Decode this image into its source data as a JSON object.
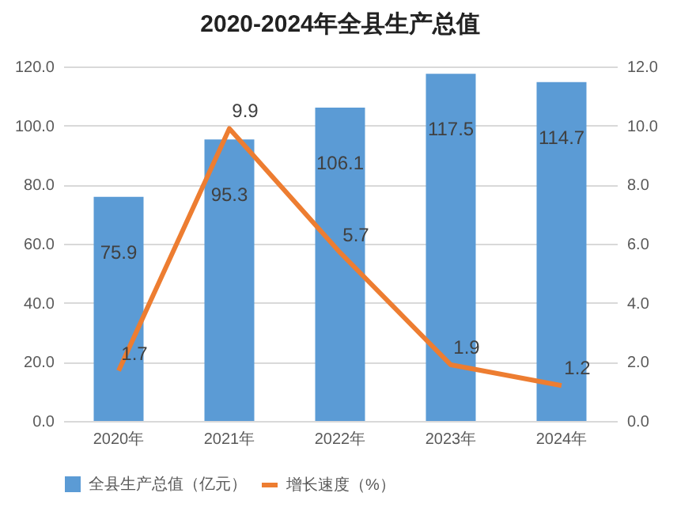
{
  "chart_data": {
    "type": "bar",
    "title": "2020-2024年全县生产总值",
    "categories": [
      "2020年",
      "2021年",
      "2022年",
      "2023年",
      "2024年"
    ],
    "series": [
      {
        "name": "全县生产总值（亿元）",
        "color": "#5b9bd5",
        "values": [
          75.9,
          95.3,
          106.1,
          117.5,
          114.7
        ]
      },
      {
        "name": "增长速度（%）",
        "type": "line",
        "axis": "y2",
        "color": "#ed7d31",
        "values": [
          1.7,
          9.9,
          5.7,
          1.9,
          1.2
        ]
      }
    ],
    "ylim": [
      0,
      120
    ],
    "yticks": [
      {
        "value": 0,
        "label": "0.0"
      },
      {
        "value": 20,
        "label": "20.0"
      },
      {
        "value": 40,
        "label": "40.0"
      },
      {
        "value": 60,
        "label": "60.0"
      },
      {
        "value": 80,
        "label": "80.0"
      },
      {
        "value": 100,
        "label": "100.0"
      },
      {
        "value": 120,
        "label": "120.0"
      }
    ],
    "y2lim": [
      0,
      12
    ],
    "y2ticks": [
      {
        "value": 0,
        "label": "0.0"
      },
      {
        "value": 2,
        "label": "2.0"
      },
      {
        "value": 4,
        "label": "4.0"
      },
      {
        "value": 6,
        "label": "6.0"
      },
      {
        "value": 8,
        "label": "8.0"
      },
      {
        "value": 10,
        "label": "10.0"
      },
      {
        "value": 12,
        "label": "12.0"
      }
    ],
    "grid": "y",
    "legend": "bottom",
    "data_labels": true
  }
}
